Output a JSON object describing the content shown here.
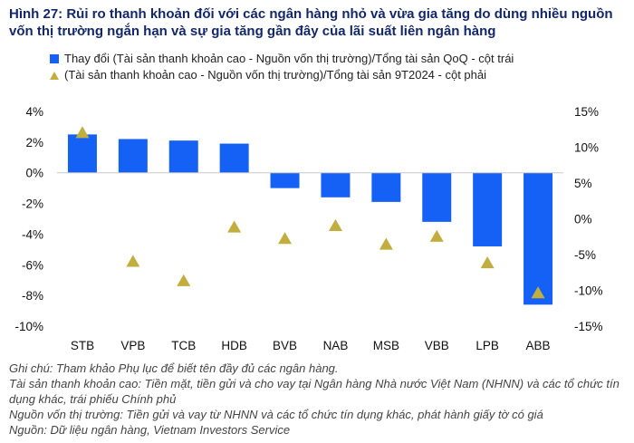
{
  "title": "Hình 27: Rủi ro thanh khoản đối với các ngân hàng nhỏ và vừa gia tăng do dùng nhiều nguồn vốn thị trường ngắn hạn và sự gia tăng gần đây của lãi suất liên ngân hàng",
  "colors": {
    "title": "#13286b",
    "bar": "#1560f5",
    "marker": "#c2ae3f",
    "text": "#111111"
  },
  "chart_data": {
    "type": "bar+scatter",
    "categories": [
      "STB",
      "VPB",
      "TCB",
      "HDB",
      "BVB",
      "NAB",
      "MSB",
      "VBB",
      "LPB",
      "ABB"
    ],
    "series": [
      {
        "name": "Thay đổi (Tài sản thanh khoản cao - Nguồn vốn thị trường)/Tổng tài sản QoQ - cột trái",
        "type": "bar",
        "axis": "left",
        "values": [
          2.5,
          2.2,
          2.1,
          1.9,
          -1.0,
          -1.6,
          -1.9,
          -3.2,
          -4.8,
          -8.6
        ]
      },
      {
        "name": "(Tài sản thanh khoản cao - Nguồn vốn thị trường)/Tổng tài sản 9T2024 - cột phải",
        "type": "scatter",
        "marker": "triangle",
        "axis": "right",
        "values": [
          12.0,
          -6.0,
          -8.7,
          -1.2,
          -2.8,
          -1.0,
          -3.6,
          -2.5,
          -6.2,
          -10.4
        ]
      }
    ],
    "y_left": {
      "range": [
        -10,
        4
      ],
      "ticks": [
        4,
        2,
        0,
        -2,
        -4,
        -6,
        -8,
        -10
      ],
      "tick_labels": [
        "4%",
        "2%",
        "0%",
        "-2%",
        "-4%",
        "-6%",
        "-8%",
        "-10%"
      ]
    },
    "y_right": {
      "range": [
        -15,
        15
      ],
      "ticks": [
        15,
        10,
        5,
        0,
        -5,
        -10,
        -15
      ],
      "tick_labels": [
        "15%",
        "10%",
        "5%",
        "0%",
        "-5%",
        "-10%",
        "-15%"
      ]
    },
    "grid": false
  },
  "notes": [
    "Ghi chú: Tham khảo Phụ lục để biết tên đầy đủ các ngân hàng.",
    "Tài sản thanh khoản cao: Tiền mặt, tiền gửi và cho vay tại Ngân hàng Nhà nước Việt Nam (NHNN) và các tổ chức tín dụng khác, trái phiếu Chính phủ",
    "Nguồn vốn thị trường: Tiền gửi và vay từ NHNN và các tổ chức tín dụng khác, phát hành giấy tờ có giá",
    "Nguồn: Dữ liệu ngân hàng, Vietnam Investors Service"
  ]
}
